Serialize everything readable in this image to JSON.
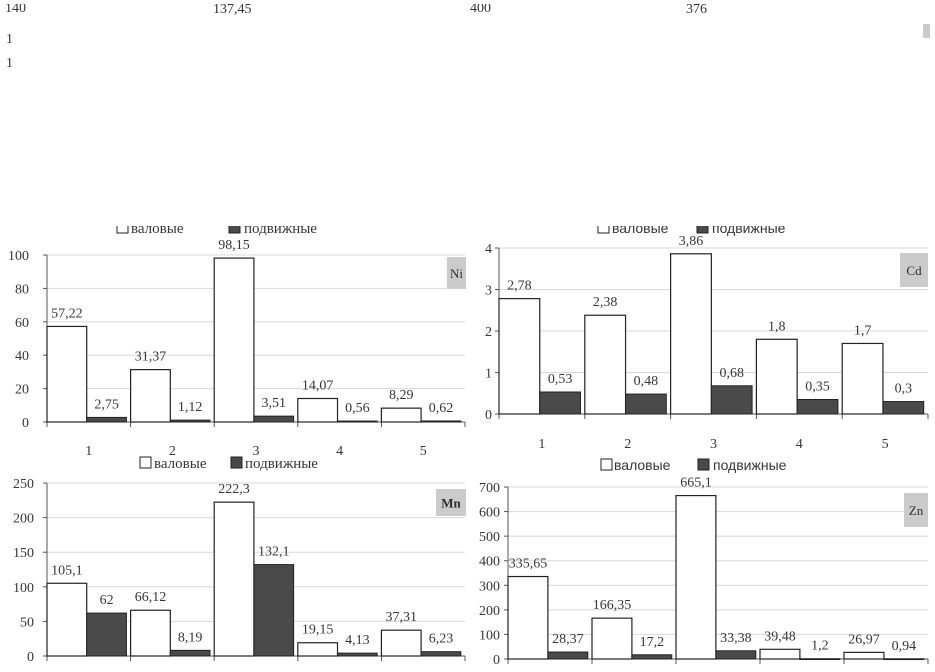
{
  "cropped_top": {
    "left_axis_top": "140",
    "left_axis_fragment_1": "1",
    "left_axis_fragment_2": "1",
    "left_value": "137,45",
    "right_axis_top": "400",
    "right_value": "376",
    "legend_left": {
      "series1": "валовые",
      "series2": "подвижные"
    },
    "legend_right": {
      "series1": "валовые",
      "series2": "подвижные"
    }
  },
  "colors": {
    "series1_fill": "#ffffff",
    "series2_fill": "#4a4a4a",
    "label_box": "#cbcbcb"
  },
  "chart_data": [
    {
      "type": "bar",
      "label": "Ni",
      "categories": [
        "1",
        "2",
        "3",
        "4",
        "5"
      ],
      "series": [
        {
          "name": "валовые",
          "values": [
            57.22,
            31.37,
            98.15,
            14.07,
            8.29
          ],
          "data_labels": [
            "57,22",
            "31,37",
            "98,15",
            "14,07",
            "8,29"
          ]
        },
        {
          "name": "подвижные",
          "values": [
            2.75,
            1.12,
            3.51,
            0.56,
            0.62
          ],
          "data_labels": [
            "2,75",
            "1,12",
            "3,51",
            "0,56",
            "0,62"
          ]
        }
      ],
      "ylim": [
        0,
        100
      ],
      "yticks": [
        "0",
        "20",
        "40",
        "60",
        "80",
        "100"
      ],
      "grid": true,
      "legend": "bottom"
    },
    {
      "type": "bar",
      "label": "Cd",
      "categories": [
        "1",
        "2",
        "3",
        "4",
        "5"
      ],
      "series": [
        {
          "name": "валовые",
          "values": [
            2.78,
            2.38,
            3.86,
            1.8,
            1.7
          ],
          "data_labels": [
            "2,78",
            "2,38",
            "3,86",
            "1,8",
            "1,7"
          ]
        },
        {
          "name": "подвижные",
          "values": [
            0.53,
            0.48,
            0.68,
            0.35,
            0.3
          ],
          "data_labels": [
            "0,53",
            "0,48",
            "0,68",
            "0,35",
            "0,3"
          ]
        }
      ],
      "ylim": [
        0,
        4
      ],
      "yticks": [
        "0",
        "1",
        "2",
        "3",
        "4"
      ],
      "grid": true,
      "legend": "bottom"
    },
    {
      "type": "bar",
      "label": "Mn",
      "series": [
        {
          "values": [
            105.1,
            66.12,
            222.3,
            19.15,
            37.31
          ],
          "data_labels": [
            "105,1",
            "66,12",
            "222,3",
            "19,15",
            "37,31"
          ]
        },
        {
          "values": [
            62,
            8.19,
            132.1,
            4.13,
            6.23
          ],
          "data_labels": [
            "62",
            "8,19",
            "132,1",
            "4,13",
            "6,23"
          ]
        }
      ],
      "ylim": [
        0,
        250
      ],
      "yticks": [
        "0",
        "50",
        "100",
        "150",
        "200",
        "250"
      ],
      "grid": true
    },
    {
      "type": "bar",
      "label": "Zn",
      "series": [
        {
          "values": [
            335.65,
            166.35,
            665.1,
            39.48,
            26.97
          ],
          "data_labels": [
            "335,65",
            "166,35",
            "665,1",
            "39,48",
            "26,97"
          ]
        },
        {
          "values": [
            28.37,
            17.2,
            33.38,
            1.2,
            0.94
          ],
          "data_labels": [
            "28,37",
            "17,2",
            "33,38",
            "1,2",
            "0,94"
          ]
        }
      ],
      "ylim": [
        0,
        700
      ],
      "yticks": [
        "0",
        "100",
        "200",
        "300",
        "400",
        "500",
        "600",
        "700"
      ],
      "grid": true
    }
  ]
}
